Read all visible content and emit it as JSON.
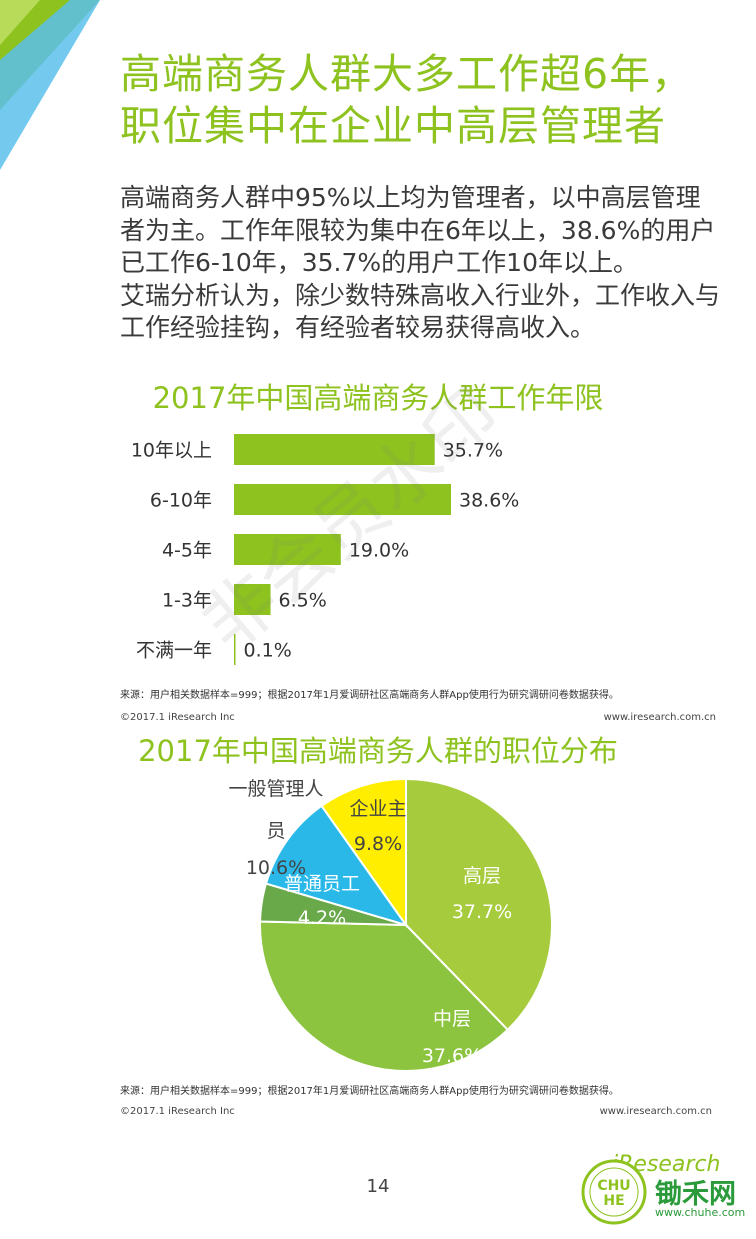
{
  "page": {
    "title": "高端商务人群大多工作超6年，职位集中在企业中高层管理者",
    "intro_1": "高端商务人群中95%以上均为管理者，以中高层管理者为主。工作年限较为集中在6年以上，38.6%的用户已工作6-10年，35.7%的用户工作10年以上。",
    "intro_2": "艾瑞分析认为，除少数特殊高收入行业外，工作收入与工作经验挂钩，有经验者较易获得高收入。",
    "page_number": "14",
    "watermark": "非会员水印",
    "colors": {
      "accent": "#8dc21f",
      "blue": "#5bc0eb"
    }
  },
  "chart_data": [
    {
      "type": "bar",
      "orientation": "horizontal",
      "title": "2017年中国高端商务人群工作年限",
      "categories": [
        "10年以上",
        "6-10年",
        "4-5年",
        "1-3年",
        "不满一年"
      ],
      "values": [
        35.7,
        38.6,
        19.0,
        6.5,
        0.1
      ],
      "labels": [
        "35.7%",
        "38.6%",
        "19.0%",
        "6.5%",
        "0.1%"
      ],
      "color": "#8dc21f",
      "xlim": [
        0,
        40
      ],
      "source": "来源：用户相关数据样本=999；根据2017年1月爱调研社区高端商务人群App使用行为研究调研问卷数据获得。",
      "copyright": "©2017.1 iResearch Inc",
      "website": "www.iresearch.com.cn"
    },
    {
      "type": "pie",
      "title": "2017年中国高端商务人群的职位分布",
      "slices": [
        {
          "name": "高层",
          "value": 37.7,
          "label": "37.7%",
          "color": "#a6cb3c"
        },
        {
          "name": "中层",
          "value": 37.6,
          "label": "37.6%",
          "color": "#8cc43f"
        },
        {
          "name": "普通员工",
          "value": 4.2,
          "label": "4.2%",
          "color": "#6aa94a"
        },
        {
          "name": "一般管理人员",
          "value": 10.6,
          "label": "10.6%",
          "color": "#2ab8e8"
        },
        {
          "name": "企业主",
          "value": 9.8,
          "label": "9.8%",
          "color": "#ffee00"
        }
      ],
      "source": "来源：用户相关数据样本=999；根据2017年1月爱调研社区高端商务人群App使用行为研究调研问卷数据获得。",
      "copyright": "©2017.1 iResearch Inc",
      "website": "www.iresearch.com.cn"
    }
  ],
  "branding": {
    "iresearch": "iResearch",
    "chuhe_name": "锄禾网",
    "chuhe_url": "www.chuhe.com"
  }
}
